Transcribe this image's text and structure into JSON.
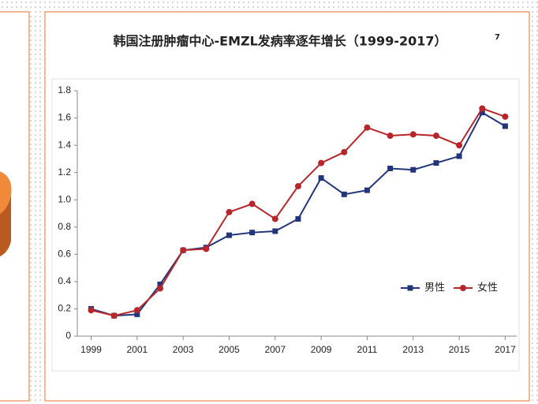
{
  "chart_data": {
    "type": "line",
    "title": "韩国注册肿瘤中心-EMZL发病率逐年增长（1999-2017）",
    "title_note": "7",
    "x": [
      1999,
      2000,
      2001,
      2002,
      2003,
      2004,
      2005,
      2006,
      2007,
      2008,
      2009,
      2010,
      2011,
      2012,
      2013,
      2014,
      2015,
      2016,
      2017
    ],
    "xlim": [
      1998.4,
      2017.5
    ],
    "xticks": [
      1999,
      2001,
      2003,
      2005,
      2007,
      2009,
      2011,
      2013,
      2015,
      2017
    ],
    "ylim": [
      0,
      1.8
    ],
    "yticks": [
      0,
      0.2,
      0.4,
      0.6,
      0.8,
      {
        "value": 1,
        "label": "1.0"
      },
      1.2,
      1.4,
      1.6,
      1.8
    ],
    "legend_position": "lower right",
    "series": [
      {
        "name": "男性",
        "color": "#23357a",
        "marker": "square",
        "values": [
          0.2,
          0.15,
          0.16,
          0.38,
          0.63,
          0.65,
          0.74,
          0.76,
          0.77,
          0.86,
          1.16,
          1.04,
          1.07,
          1.23,
          1.22,
          1.27,
          1.32,
          1.64,
          1.54
        ]
      },
      {
        "name": "女性",
        "color": "#b8262b",
        "marker": "circle",
        "values": [
          0.19,
          0.15,
          0.19,
          0.35,
          0.63,
          0.64,
          0.91,
          0.97,
          0.86,
          1.1,
          1.27,
          1.35,
          1.53,
          1.47,
          1.48,
          1.47,
          1.4,
          1.67,
          1.61
        ]
      }
    ]
  }
}
